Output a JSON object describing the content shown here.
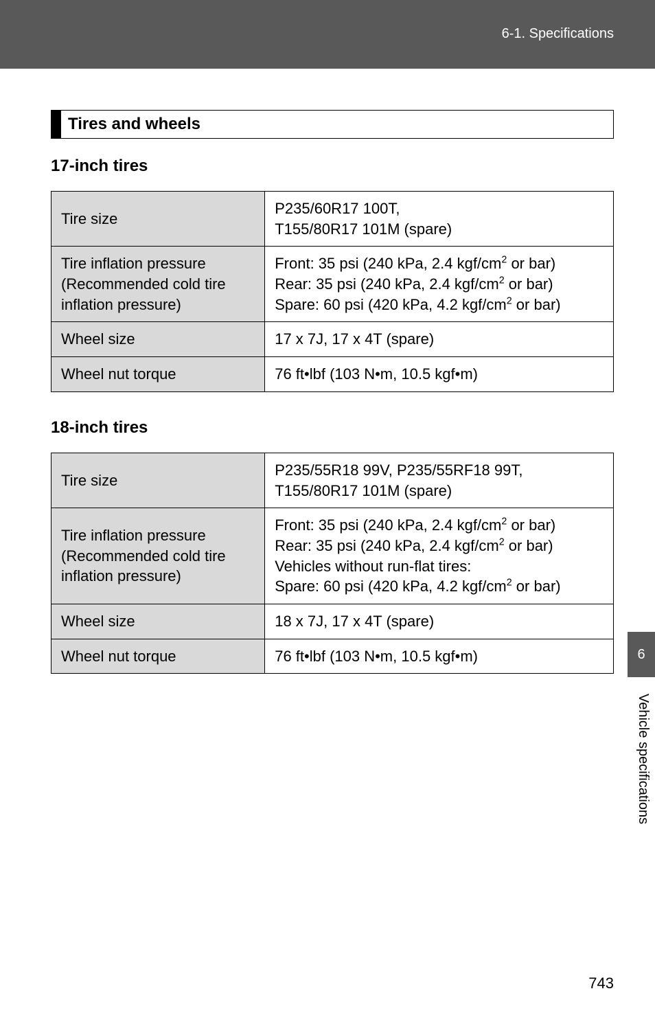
{
  "header": {
    "breadcrumb": "6-1. Specifications"
  },
  "section": {
    "title": "Tires and wheels"
  },
  "tables": [
    {
      "heading": "17-inch tires",
      "rows": [
        {
          "k": "Tire size",
          "v": "P235/60R17 100T,\nT155/80R17 101M (spare)"
        },
        {
          "k": "Tire inflation pressure\n(Recommended cold tire\ninflation pressure)",
          "v": "Front:  35 psi (240 kPa, 2.4 kgf/cm² or bar)\nRear:  35 psi (240 kPa, 2.4 kgf/cm² or bar)\nSpare: 60 psi (420 kPa, 4.2 kgf/cm² or bar)"
        },
        {
          "k": "Wheel size",
          "v": "17 x 7J, 17 x 4T (spare)"
        },
        {
          "k": "Wheel nut torque",
          "v": "76 ft•lbf (103 N•m, 10.5 kgf•m)"
        }
      ]
    },
    {
      "heading": "18-inch tires",
      "rows": [
        {
          "k": "Tire size",
          "v": "P235/55R18 99V, P235/55RF18 99T,\nT155/80R17 101M (spare)"
        },
        {
          "k": "Tire inflation pressure\n(Recommended cold tire\ninflation pressure)",
          "v": "Front:  35 psi (240 kPa, 2.4 kgf/cm² or bar)\nRear:  35 psi (240 kPa, 2.4 kgf/cm² or bar)\nVehicles without run-flat tires:\nSpare: 60 psi (420 kPa, 4.2 kgf/cm² or bar)"
        },
        {
          "k": "Wheel size",
          "v": "18 x 7J, 17 x 4T (spare)"
        },
        {
          "k": "Wheel nut torque",
          "v": "76 ft•lbf (103 N•m, 10.5 kgf•m)"
        }
      ]
    }
  ],
  "sideTab": {
    "number": "6",
    "label": "Vehicle specifications"
  },
  "pageNumber": "743",
  "colors": {
    "band": "#595959",
    "cellKeyBg": "#d9d9d9",
    "text": "#000000",
    "white": "#ffffff"
  }
}
